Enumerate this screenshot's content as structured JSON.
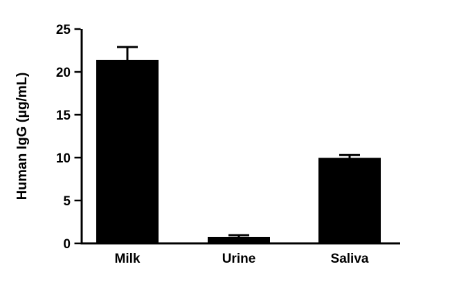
{
  "chart_data": {
    "type": "bar",
    "categories": [
      "Milk",
      "Urine",
      "Saliva"
    ],
    "values": [
      21.3,
      0.65,
      9.9
    ],
    "errors_plus": [
      1.6,
      0.3,
      0.4
    ],
    "title": "",
    "xlabel": "",
    "ylabel": "Human IgG (µg/mL)",
    "ylim": [
      0,
      25
    ],
    "yticks": [
      0,
      5,
      10,
      15,
      20,
      25
    ],
    "bar_color": "#000000",
    "axis_color": "#000000",
    "grid": false,
    "legend": "none"
  }
}
